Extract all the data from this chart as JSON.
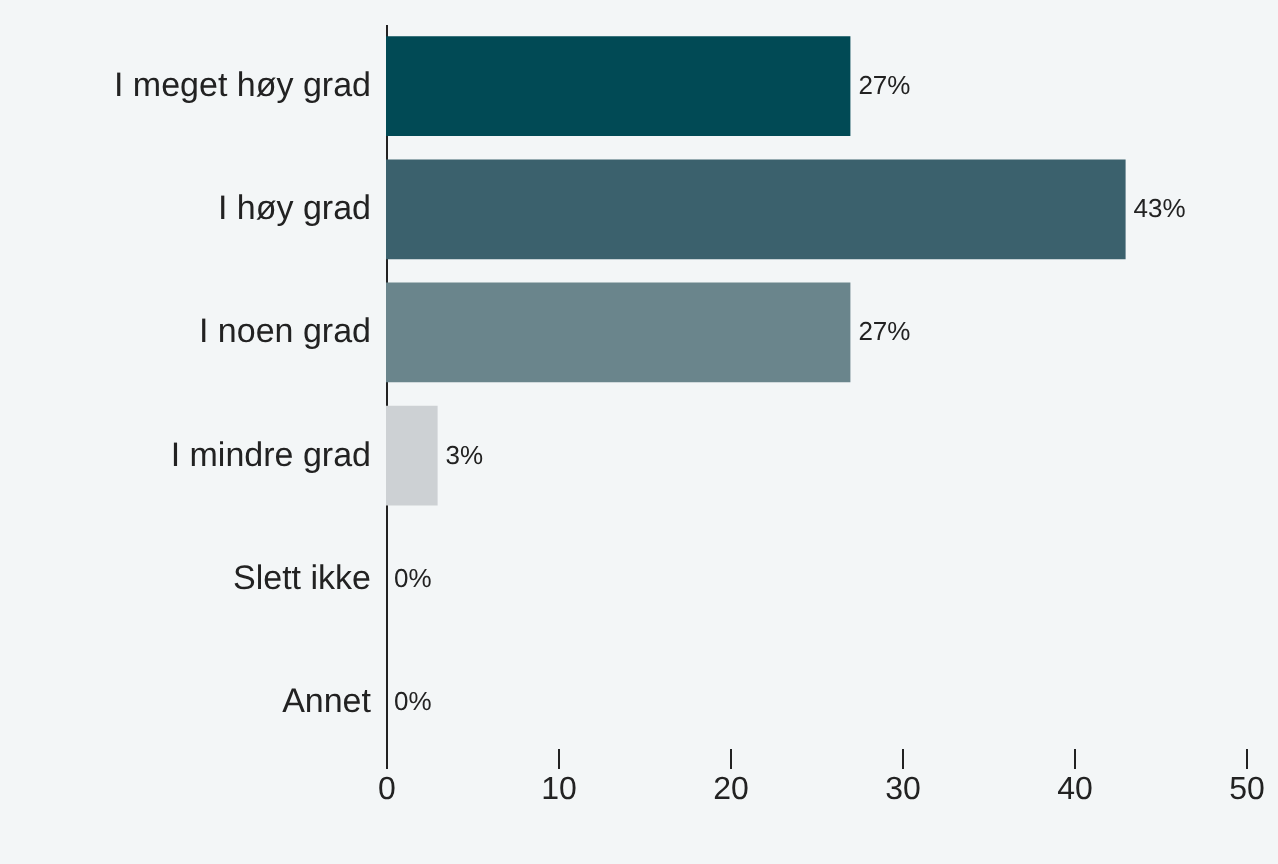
{
  "chart_data": {
    "type": "bar",
    "orientation": "horizontal",
    "categories": [
      "I meget høy grad",
      "I høy grad",
      "I noen grad",
      "I mindre grad",
      "Slett ikke",
      "Annet"
    ],
    "values": [
      27,
      43,
      27,
      3,
      0,
      0
    ],
    "colors": [
      "#014a55",
      "#3b616d",
      "#6a858c",
      "#cdd1d4",
      "#cdd1d4",
      "#cdd1d4"
    ],
    "value_labels": [
      "27%",
      "43%",
      "27%",
      "3%",
      "0%",
      "0%"
    ],
    "xlim": [
      0,
      50
    ],
    "xticks": [
      0,
      10,
      20,
      30,
      40,
      50
    ],
    "grid": false
  }
}
